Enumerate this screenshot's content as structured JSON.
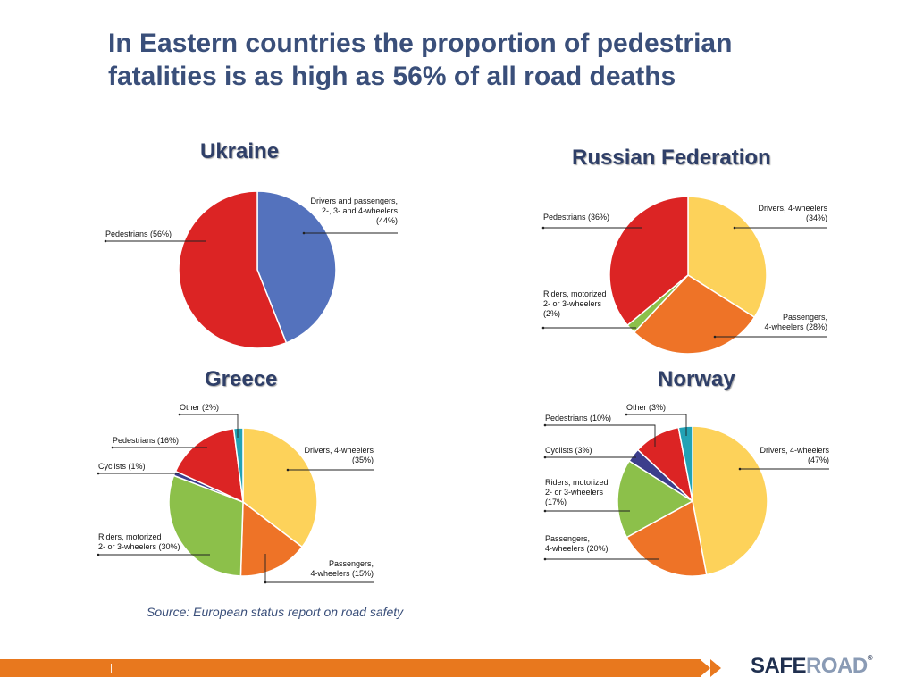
{
  "slide": {
    "title_line1": "In Eastern countries the proportion of pedestrian",
    "title_line2": "fatalities is as high as 56% of all road deaths",
    "source": "Source: European status report on road safety",
    "footer_separator": "|",
    "logo_safe": "SAFE",
    "logo_road": "ROAD",
    "logo_reg": "®",
    "footer_color": "#e8781e"
  },
  "chart_data": [
    {
      "type": "pie",
      "title": "Ukraine",
      "slices": [
        {
          "label": [
            "Drivers and passengers,",
            "2-, 3- and 4-wheelers",
            "(44%)"
          ],
          "value": 44,
          "color": "#5472bd"
        },
        {
          "label": [
            "Pedestrians (56%)"
          ],
          "value": 56,
          "color": "#dc2424"
        }
      ]
    },
    {
      "type": "pie",
      "title": "Russian Federation",
      "slices": [
        {
          "label": [
            "Drivers, 4-wheelers",
            "(34%)"
          ],
          "value": 34,
          "color": "#fdd25a"
        },
        {
          "label": [
            "Passengers,",
            "4-wheelers (28%)"
          ],
          "value": 28,
          "color": "#ee7327"
        },
        {
          "label": [
            "Riders, motorized",
            "2- or 3-wheelers",
            "(2%)"
          ],
          "value": 2,
          "color": "#8cc04a"
        },
        {
          "label": [
            "Pedestrians (36%)"
          ],
          "value": 36,
          "color": "#dc2424"
        }
      ]
    },
    {
      "type": "pie",
      "title": "Greece",
      "slices": [
        {
          "label": [
            "Drivers, 4-wheelers",
            "(35%)"
          ],
          "value": 35,
          "color": "#fdd25a"
        },
        {
          "label": [
            "Passengers,",
            "4-wheelers (15%)"
          ],
          "value": 15,
          "color": "#ee7327"
        },
        {
          "label": [
            "Riders, motorized",
            "2- or 3-wheelers (30%)"
          ],
          "value": 30,
          "color": "#8cc04a"
        },
        {
          "label": [
            "Cyclists (1%)"
          ],
          "value": 1,
          "color": "#3c3e8c"
        },
        {
          "label": [
            "Pedestrians (16%)"
          ],
          "value": 16,
          "color": "#dc2424"
        },
        {
          "label": [
            "Other (2%)"
          ],
          "value": 2,
          "color": "#22a2b5"
        }
      ]
    },
    {
      "type": "pie",
      "title": "Norway",
      "slices": [
        {
          "label": [
            "Drivers, 4-wheelers",
            "(47%)"
          ],
          "value": 47,
          "color": "#fdd25a"
        },
        {
          "label": [
            "Passengers,",
            "4-wheelers (20%)"
          ],
          "value": 20,
          "color": "#ee7327"
        },
        {
          "label": [
            "Riders, motorized",
            "2- or 3-wheelers",
            "(17%)"
          ],
          "value": 17,
          "color": "#8cc04a"
        },
        {
          "label": [
            "Cyclists (3%)"
          ],
          "value": 3,
          "color": "#3c3e8c"
        },
        {
          "label": [
            "Pedestrians (10%)"
          ],
          "value": 10,
          "color": "#dc2424"
        },
        {
          "label": [
            "Other (3%)"
          ],
          "value": 3,
          "color": "#22a2b5"
        }
      ]
    }
  ]
}
